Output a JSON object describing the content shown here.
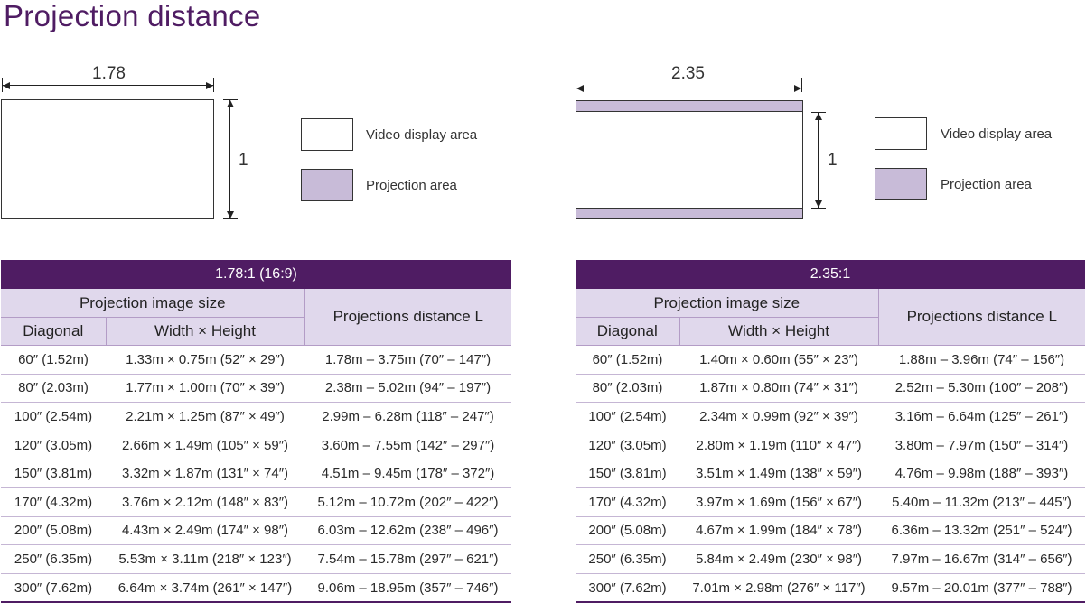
{
  "page_title": "Projection distance",
  "diagram_left": {
    "width_label": "1.78",
    "height_label": "1"
  },
  "diagram_right": {
    "width_label": "2.35",
    "height_label": "1"
  },
  "legend": {
    "video_display_area": "Video display area",
    "projection_area": "Projection area",
    "video_color": "#ffffff",
    "projection_color": "#c8bbd8"
  },
  "colors": {
    "title": "#4f1c63",
    "header": "#4f1c63",
    "subheader": "#e0d8ec"
  },
  "table_left": {
    "ratio": "1.78:1 (16:9)",
    "group_header": "Projection image size",
    "col_diagonal": "Diagonal",
    "col_size": "Width × Height",
    "col_distance": "Projections distance L",
    "rows": [
      [
        "60″ (1.52m)",
        "1.33m × 0.75m (52″ × 29″)",
        "1.78m – 3.75m (70″ – 147″)"
      ],
      [
        "80″ (2.03m)",
        "1.77m × 1.00m (70″ × 39″)",
        "2.38m – 5.02m (94″ – 197″)"
      ],
      [
        "100″ (2.54m)",
        "2.21m × 1.25m (87″ × 49″)",
        "2.99m – 6.28m (118″ – 247″)"
      ],
      [
        "120″ (3.05m)",
        "2.66m × 1.49m (105″ × 59″)",
        "3.60m – 7.55m (142″ – 297″)"
      ],
      [
        "150″ (3.81m)",
        "3.32m × 1.87m (131″ × 74″)",
        "4.51m – 9.45m (178″ – 372″)"
      ],
      [
        "170″ (4.32m)",
        "3.76m × 2.12m (148″ × 83″)",
        "5.12m – 10.72m (202″ – 422″)"
      ],
      [
        "200″ (5.08m)",
        "4.43m × 2.49m (174″ × 98″)",
        "6.03m – 12.62m (238″ – 496″)"
      ],
      [
        "250″ (6.35m)",
        "5.53m × 3.11m (218″ × 123″)",
        "7.54m – 15.78m (297″ – 621″)"
      ],
      [
        "300″ (7.62m)",
        "6.64m × 3.74m (261″ × 147″)",
        "9.06m – 18.95m (357″ – 746″)"
      ]
    ]
  },
  "table_right": {
    "ratio": "2.35:1",
    "group_header": "Projection image size",
    "col_diagonal": "Diagonal",
    "col_size": "Width × Height",
    "col_distance": "Projections distance L",
    "rows": [
      [
        "60″ (1.52m)",
        "1.40m × 0.60m (55″ × 23″)",
        "1.88m – 3.96m (74″ – 156″)"
      ],
      [
        "80″ (2.03m)",
        "1.87m × 0.80m (74″ × 31″)",
        "2.52m – 5.30m (100″ – 208″)"
      ],
      [
        "100″ (2.54m)",
        "2.34m × 0.99m (92″ × 39″)",
        "3.16m – 6.64m (125″ – 261″)"
      ],
      [
        "120″ (3.05m)",
        "2.80m × 1.19m (110″ × 47″)",
        "3.80m – 7.97m (150″ – 314″)"
      ],
      [
        "150″ (3.81m)",
        "3.51m × 1.49m (138″ × 59″)",
        "4.76m – 9.98m (188″ – 393″)"
      ],
      [
        "170″ (4.32m)",
        "3.97m × 1.69m (156″ × 67″)",
        "5.40m – 11.32m (213″ – 445″)"
      ],
      [
        "200″ (5.08m)",
        "4.67m × 1.99m (184″ × 78″)",
        "6.36m – 13.32m (251″ – 524″)"
      ],
      [
        "250″ (6.35m)",
        "5.84m × 2.49m (230″ × 98″)",
        "7.97m – 16.67m (314″ – 656″)"
      ],
      [
        "300″ (7.62m)",
        "7.01m × 2.98m (276″ × 117″)",
        "9.57m – 20.01m (377″ – 788″)"
      ]
    ]
  }
}
